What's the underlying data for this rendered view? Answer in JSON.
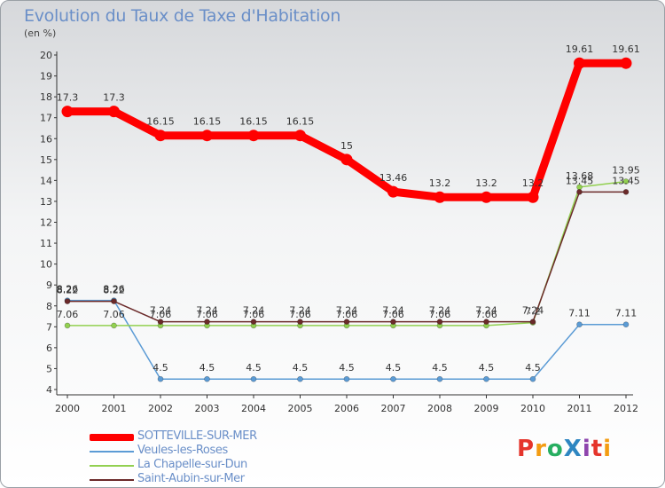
{
  "header": {
    "title": "Evolution du Taux de Taxe d'Habitation",
    "subtitle": "(en %)"
  },
  "chart_data": {
    "type": "line",
    "title": "Evolution du Taux de Taxe d'Habitation",
    "ylabel": "(en %)",
    "xlabel": "",
    "categories": [
      "2000",
      "2001",
      "2002",
      "2003",
      "2004",
      "2005",
      "2006",
      "2007",
      "2008",
      "2009",
      "2010",
      "2011",
      "2012"
    ],
    "ylim": [
      4,
      20
    ],
    "yticks": [
      4,
      5,
      6,
      7,
      8,
      9,
      10,
      11,
      12,
      13,
      14,
      15,
      16,
      17,
      18,
      19,
      20
    ],
    "grid": false,
    "legend": "bottom-left",
    "series": [
      {
        "name": "SOTTEVILLE-SUR-MER",
        "color": "#ff0000",
        "values": [
          17.3,
          17.3,
          16.15,
          16.15,
          16.15,
          16.15,
          15,
          13.46,
          13.2,
          13.2,
          13.2,
          19.61,
          19.61
        ],
        "labels": [
          "17.3",
          "17.3",
          "16.15",
          "16.15",
          "16.15",
          "16.15",
          "15",
          "13.46",
          "13.2",
          "13.2",
          "13.2",
          "19.61",
          "19.61"
        ]
      },
      {
        "name": "Veules-les-Roses",
        "color": "#5b9bd5",
        "values": [
          8.26,
          8.26,
          4.5,
          4.5,
          4.5,
          4.5,
          4.5,
          4.5,
          4.5,
          4.5,
          4.5,
          7.11,
          7.11
        ],
        "labels": [
          "8.26",
          "8.26",
          "4.5",
          "4.5",
          "4.5",
          "4.5",
          "4.5",
          "4.5",
          "4.5",
          "4.5",
          "4.5",
          "7.11",
          "7.11"
        ]
      },
      {
        "name": "La Chapelle-sur-Dun",
        "color": "#92d050",
        "values": [
          7.06,
          7.06,
          7.06,
          7.06,
          7.06,
          7.06,
          7.06,
          7.06,
          7.06,
          7.06,
          7.2,
          13.68,
          13.95
        ],
        "labels": [
          "7.06",
          "7.06",
          "7.06",
          "7.06",
          "7.06",
          "7.06",
          "7.06",
          "7.06",
          "7.06",
          "7.06",
          "7.2",
          "13.68",
          "13.95"
        ]
      },
      {
        "name": "Saint-Aubin-sur-Mer",
        "color": "#6b2a2a",
        "values": [
          8.22,
          8.22,
          7.24,
          7.24,
          7.24,
          7.24,
          7.24,
          7.24,
          7.24,
          7.24,
          7.24,
          13.45,
          13.45
        ],
        "labels": [
          "8.22",
          "8.22",
          "7.24",
          "7.24",
          "7.24",
          "7.24",
          "7.24",
          "7.24",
          "7.24",
          "7.24",
          "7.24",
          "13.45",
          "13.45"
        ]
      }
    ]
  },
  "legend": {
    "items": [
      {
        "label": "SOTTEVILLE-SUR-MER"
      },
      {
        "label": "Veules-les-Roses"
      },
      {
        "label": "La Chapelle-sur-Dun"
      },
      {
        "label": "Saint-Aubin-sur-Mer"
      }
    ]
  },
  "logo": {
    "text": "ProXiti",
    "colors": [
      "#e5352c",
      "#f39c12",
      "#27ae60",
      "#2e86c1",
      "#8e44ad"
    ]
  }
}
